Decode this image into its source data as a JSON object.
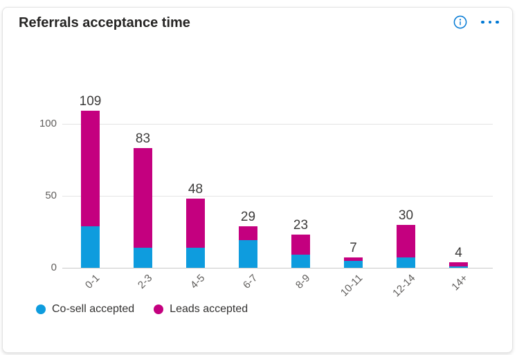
{
  "card": {
    "title": "Referrals acceptance time",
    "accent_color": "#0078D4",
    "header_icons": [
      "info-icon",
      "ellipsis-icon"
    ]
  },
  "chart_data": {
    "type": "bar",
    "stacked": true,
    "title": "Referrals acceptance time",
    "categories": [
      "0-1",
      "2-3",
      "4-5",
      "6-7",
      "8-9",
      "10-11",
      "12-14",
      "14+"
    ],
    "series": [
      {
        "name": "Co-sell accepted",
        "color": "#0E9CDE",
        "values": [
          29,
          14,
          14,
          19,
          9,
          5,
          7,
          1
        ]
      },
      {
        "name": "Leads accepted",
        "color": "#C4007F",
        "values": [
          80,
          69,
          34,
          10,
          14,
          2,
          23,
          3
        ]
      }
    ],
    "totals": [
      109,
      83,
      48,
      29,
      23,
      7,
      30,
      4
    ],
    "xlabel": "",
    "ylabel": "",
    "y_ticks": [
      0,
      50,
      100
    ],
    "ylim": [
      0,
      120
    ],
    "grid": true,
    "legend_position": "bottom-left",
    "x_tick_rotation": -45
  }
}
